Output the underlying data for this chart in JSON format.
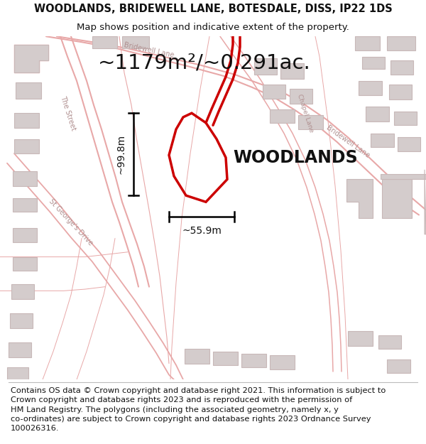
{
  "title_line1": "WOODLANDS, BRIDEWELL LANE, BOTESDALE, DISS, IP22 1DS",
  "title_line2": "Map shows position and indicative extent of the property.",
  "area_label": "~1179m²/~0.291ac.",
  "property_name": "WOODLANDS",
  "dim_vertical": "~99.8m",
  "dim_horizontal": "~55.9m",
  "footer_text": "Contains OS data © Crown copyright and database right 2021. This information is subject to\nCrown copyright and database rights 2023 and is reproduced with the permission of\nHM Land Registry. The polygons (including the associated geometry, namely x, y\nco-ordinates) are subject to Crown copyright and database rights 2023 Ordnance Survey\n100026316.",
  "map_bg": "#f7f0f0",
  "plot_color": "#cc0000",
  "road_color": "#e8a8a8",
  "building_fill": "#d4cccc",
  "building_edge": "#c8b8b8",
  "title_fontsize": 10.5,
  "subtitle_fontsize": 9.5,
  "area_fontsize": 21,
  "label_fontsize": 17,
  "footer_fontsize": 8.2,
  "dim_fontsize": 10
}
